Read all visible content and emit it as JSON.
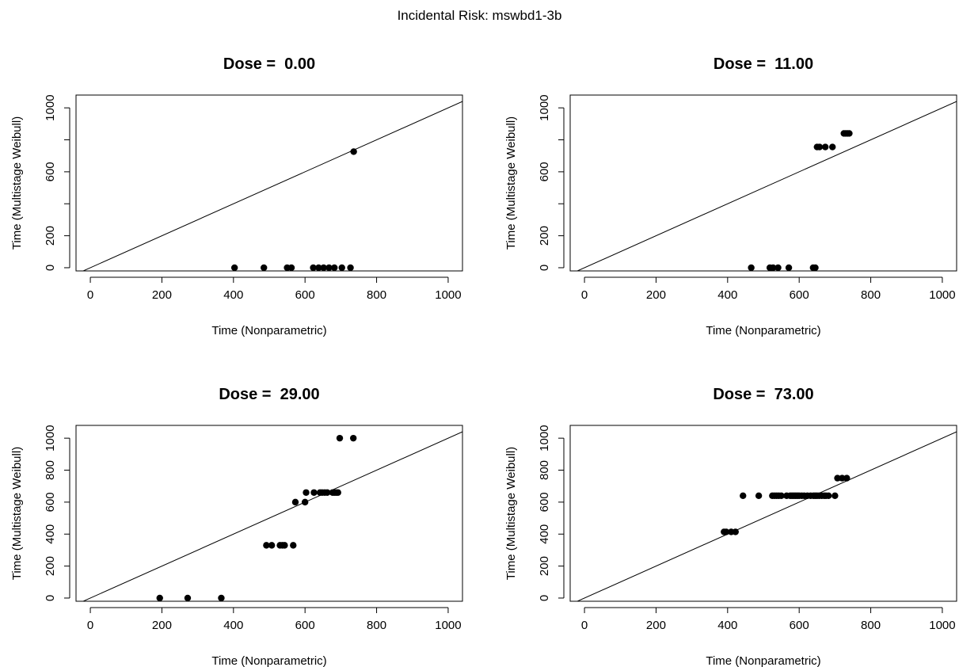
{
  "figure": {
    "title": "Incidental Risk: mswbd1-3b"
  },
  "chart_data": [
    {
      "type": "scatter",
      "title": "Dose =  0.00",
      "xlabel": "Time (Nonparametric)",
      "ylabel": "Time (Multistage Weibull)",
      "xlim": [
        -40,
        1040
      ],
      "ylim": [
        -20,
        1080
      ],
      "xticks": [
        0,
        200,
        400,
        600,
        800,
        1000
      ],
      "yticks": [
        0,
        200,
        600,
        1000
      ],
      "reference_line": "y = x",
      "grid": false,
      "points": [
        [
          403,
          0
        ],
        [
          485,
          0
        ],
        [
          550,
          0
        ],
        [
          562,
          0
        ],
        [
          623,
          0
        ],
        [
          638,
          0
        ],
        [
          652,
          0
        ],
        [
          667,
          0
        ],
        [
          682,
          0
        ],
        [
          703,
          0
        ],
        [
          727,
          0
        ],
        [
          736,
          726
        ]
      ]
    },
    {
      "type": "scatter",
      "title": "Dose =  11.00",
      "xlabel": "Time (Nonparametric)",
      "ylabel": "Time (Multistage Weibull)",
      "xlim": [
        -40,
        1040
      ],
      "ylim": [
        -20,
        1080
      ],
      "xticks": [
        0,
        200,
        400,
        600,
        800,
        1000
      ],
      "yticks": [
        0,
        200,
        600,
        1000
      ],
      "reference_line": "y = x",
      "grid": false,
      "points": [
        [
          466,
          0
        ],
        [
          518,
          0
        ],
        [
          527,
          0
        ],
        [
          541,
          0
        ],
        [
          571,
          0
        ],
        [
          639,
          0
        ],
        [
          645,
          0
        ],
        [
          650,
          755
        ],
        [
          657,
          755
        ],
        [
          673,
          755
        ],
        [
          693,
          755
        ],
        [
          725,
          840
        ],
        [
          730,
          840
        ],
        [
          735,
          840
        ],
        [
          740,
          840
        ]
      ]
    },
    {
      "type": "scatter",
      "title": "Dose =  29.00",
      "xlabel": "Time (Nonparametric)",
      "ylabel": "Time (Multistage Weibull)",
      "xlim": [
        -40,
        1040
      ],
      "ylim": [
        -20,
        1080
      ],
      "xticks": [
        0,
        200,
        400,
        600,
        800,
        1000
      ],
      "yticks": [
        0,
        200,
        400,
        600,
        800,
        1000
      ],
      "reference_line": "y = x",
      "grid": false,
      "points": [
        [
          194,
          0
        ],
        [
          272,
          0
        ],
        [
          366,
          0
        ],
        [
          492,
          330
        ],
        [
          507,
          330
        ],
        [
          530,
          330
        ],
        [
          537,
          330
        ],
        [
          543,
          330
        ],
        [
          567,
          330
        ],
        [
          573,
          600
        ],
        [
          600,
          600
        ],
        [
          603,
          660
        ],
        [
          625,
          660
        ],
        [
          642,
          660
        ],
        [
          648,
          660
        ],
        [
          655,
          660
        ],
        [
          662,
          660
        ],
        [
          677,
          660
        ],
        [
          682,
          660
        ],
        [
          687,
          660
        ],
        [
          692,
          660
        ],
        [
          697,
          1000
        ],
        [
          735,
          1000
        ]
      ]
    },
    {
      "type": "scatter",
      "title": "Dose =  73.00",
      "xlabel": "Time (Nonparametric)",
      "ylabel": "Time (Multistage Weibull)",
      "xlim": [
        -40,
        1040
      ],
      "ylim": [
        -20,
        1080
      ],
      "xticks": [
        0,
        200,
        400,
        600,
        800,
        1000
      ],
      "yticks": [
        0,
        200,
        400,
        600,
        800,
        1000
      ],
      "reference_line": "y = x",
      "grid": false,
      "points": [
        [
          390,
          414
        ],
        [
          396,
          414
        ],
        [
          410,
          414
        ],
        [
          422,
          414
        ],
        [
          443,
          640
        ],
        [
          487,
          640
        ],
        [
          525,
          640
        ],
        [
          531,
          640
        ],
        [
          537,
          640
        ],
        [
          543,
          640
        ],
        [
          550,
          640
        ],
        [
          565,
          640
        ],
        [
          575,
          640
        ],
        [
          580,
          640
        ],
        [
          585,
          640
        ],
        [
          590,
          640
        ],
        [
          595,
          640
        ],
        [
          600,
          640
        ],
        [
          607,
          640
        ],
        [
          614,
          640
        ],
        [
          623,
          640
        ],
        [
          632,
          640
        ],
        [
          640,
          640
        ],
        [
          645,
          640
        ],
        [
          650,
          640
        ],
        [
          656,
          640
        ],
        [
          663,
          640
        ],
        [
          670,
          640
        ],
        [
          675,
          640
        ],
        [
          682,
          640
        ],
        [
          700,
          640
        ],
        [
          707,
          750
        ],
        [
          720,
          750
        ],
        [
          733,
          750
        ]
      ]
    }
  ]
}
